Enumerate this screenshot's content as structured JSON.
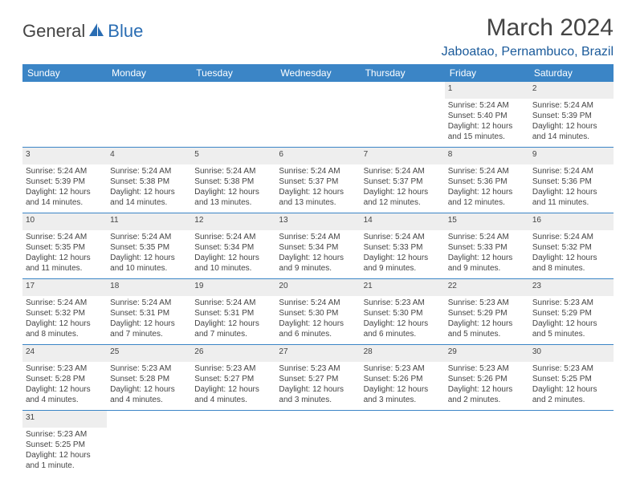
{
  "logo": {
    "text1": "General",
    "text2": "Blue"
  },
  "title": "March 2024",
  "location": "Jaboatao, Pernambuco, Brazil",
  "weekdays": [
    "Sunday",
    "Monday",
    "Tuesday",
    "Wednesday",
    "Thursday",
    "Friday",
    "Saturday"
  ],
  "colors": {
    "header_bg": "#3b85c6",
    "header_text": "#ffffff",
    "daynum_bg": "#eeeeee",
    "border": "#3b85c6",
    "title_color": "#444444",
    "location_color": "#1a5a9a",
    "body_text": "#444444"
  },
  "weeks": [
    [
      null,
      null,
      null,
      null,
      null,
      {
        "n": "1",
        "sr": "Sunrise: 5:24 AM",
        "ss": "Sunset: 5:40 PM",
        "d1": "Daylight: 12 hours",
        "d2": "and 15 minutes."
      },
      {
        "n": "2",
        "sr": "Sunrise: 5:24 AM",
        "ss": "Sunset: 5:39 PM",
        "d1": "Daylight: 12 hours",
        "d2": "and 14 minutes."
      }
    ],
    [
      {
        "n": "3",
        "sr": "Sunrise: 5:24 AM",
        "ss": "Sunset: 5:39 PM",
        "d1": "Daylight: 12 hours",
        "d2": "and 14 minutes."
      },
      {
        "n": "4",
        "sr": "Sunrise: 5:24 AM",
        "ss": "Sunset: 5:38 PM",
        "d1": "Daylight: 12 hours",
        "d2": "and 14 minutes."
      },
      {
        "n": "5",
        "sr": "Sunrise: 5:24 AM",
        "ss": "Sunset: 5:38 PM",
        "d1": "Daylight: 12 hours",
        "d2": "and 13 minutes."
      },
      {
        "n": "6",
        "sr": "Sunrise: 5:24 AM",
        "ss": "Sunset: 5:37 PM",
        "d1": "Daylight: 12 hours",
        "d2": "and 13 minutes."
      },
      {
        "n": "7",
        "sr": "Sunrise: 5:24 AM",
        "ss": "Sunset: 5:37 PM",
        "d1": "Daylight: 12 hours",
        "d2": "and 12 minutes."
      },
      {
        "n": "8",
        "sr": "Sunrise: 5:24 AM",
        "ss": "Sunset: 5:36 PM",
        "d1": "Daylight: 12 hours",
        "d2": "and 12 minutes."
      },
      {
        "n": "9",
        "sr": "Sunrise: 5:24 AM",
        "ss": "Sunset: 5:36 PM",
        "d1": "Daylight: 12 hours",
        "d2": "and 11 minutes."
      }
    ],
    [
      {
        "n": "10",
        "sr": "Sunrise: 5:24 AM",
        "ss": "Sunset: 5:35 PM",
        "d1": "Daylight: 12 hours",
        "d2": "and 11 minutes."
      },
      {
        "n": "11",
        "sr": "Sunrise: 5:24 AM",
        "ss": "Sunset: 5:35 PM",
        "d1": "Daylight: 12 hours",
        "d2": "and 10 minutes."
      },
      {
        "n": "12",
        "sr": "Sunrise: 5:24 AM",
        "ss": "Sunset: 5:34 PM",
        "d1": "Daylight: 12 hours",
        "d2": "and 10 minutes."
      },
      {
        "n": "13",
        "sr": "Sunrise: 5:24 AM",
        "ss": "Sunset: 5:34 PM",
        "d1": "Daylight: 12 hours",
        "d2": "and 9 minutes."
      },
      {
        "n": "14",
        "sr": "Sunrise: 5:24 AM",
        "ss": "Sunset: 5:33 PM",
        "d1": "Daylight: 12 hours",
        "d2": "and 9 minutes."
      },
      {
        "n": "15",
        "sr": "Sunrise: 5:24 AM",
        "ss": "Sunset: 5:33 PM",
        "d1": "Daylight: 12 hours",
        "d2": "and 9 minutes."
      },
      {
        "n": "16",
        "sr": "Sunrise: 5:24 AM",
        "ss": "Sunset: 5:32 PM",
        "d1": "Daylight: 12 hours",
        "d2": "and 8 minutes."
      }
    ],
    [
      {
        "n": "17",
        "sr": "Sunrise: 5:24 AM",
        "ss": "Sunset: 5:32 PM",
        "d1": "Daylight: 12 hours",
        "d2": "and 8 minutes."
      },
      {
        "n": "18",
        "sr": "Sunrise: 5:24 AM",
        "ss": "Sunset: 5:31 PM",
        "d1": "Daylight: 12 hours",
        "d2": "and 7 minutes."
      },
      {
        "n": "19",
        "sr": "Sunrise: 5:24 AM",
        "ss": "Sunset: 5:31 PM",
        "d1": "Daylight: 12 hours",
        "d2": "and 7 minutes."
      },
      {
        "n": "20",
        "sr": "Sunrise: 5:24 AM",
        "ss": "Sunset: 5:30 PM",
        "d1": "Daylight: 12 hours",
        "d2": "and 6 minutes."
      },
      {
        "n": "21",
        "sr": "Sunrise: 5:23 AM",
        "ss": "Sunset: 5:30 PM",
        "d1": "Daylight: 12 hours",
        "d2": "and 6 minutes."
      },
      {
        "n": "22",
        "sr": "Sunrise: 5:23 AM",
        "ss": "Sunset: 5:29 PM",
        "d1": "Daylight: 12 hours",
        "d2": "and 5 minutes."
      },
      {
        "n": "23",
        "sr": "Sunrise: 5:23 AM",
        "ss": "Sunset: 5:29 PM",
        "d1": "Daylight: 12 hours",
        "d2": "and 5 minutes."
      }
    ],
    [
      {
        "n": "24",
        "sr": "Sunrise: 5:23 AM",
        "ss": "Sunset: 5:28 PM",
        "d1": "Daylight: 12 hours",
        "d2": "and 4 minutes."
      },
      {
        "n": "25",
        "sr": "Sunrise: 5:23 AM",
        "ss": "Sunset: 5:28 PM",
        "d1": "Daylight: 12 hours",
        "d2": "and 4 minutes."
      },
      {
        "n": "26",
        "sr": "Sunrise: 5:23 AM",
        "ss": "Sunset: 5:27 PM",
        "d1": "Daylight: 12 hours",
        "d2": "and 4 minutes."
      },
      {
        "n": "27",
        "sr": "Sunrise: 5:23 AM",
        "ss": "Sunset: 5:27 PM",
        "d1": "Daylight: 12 hours",
        "d2": "and 3 minutes."
      },
      {
        "n": "28",
        "sr": "Sunrise: 5:23 AM",
        "ss": "Sunset: 5:26 PM",
        "d1": "Daylight: 12 hours",
        "d2": "and 3 minutes."
      },
      {
        "n": "29",
        "sr": "Sunrise: 5:23 AM",
        "ss": "Sunset: 5:26 PM",
        "d1": "Daylight: 12 hours",
        "d2": "and 2 minutes."
      },
      {
        "n": "30",
        "sr": "Sunrise: 5:23 AM",
        "ss": "Sunset: 5:25 PM",
        "d1": "Daylight: 12 hours",
        "d2": "and 2 minutes."
      }
    ],
    [
      {
        "n": "31",
        "sr": "Sunrise: 5:23 AM",
        "ss": "Sunset: 5:25 PM",
        "d1": "Daylight: 12 hours",
        "d2": "and 1 minute."
      },
      null,
      null,
      null,
      null,
      null,
      null
    ]
  ]
}
